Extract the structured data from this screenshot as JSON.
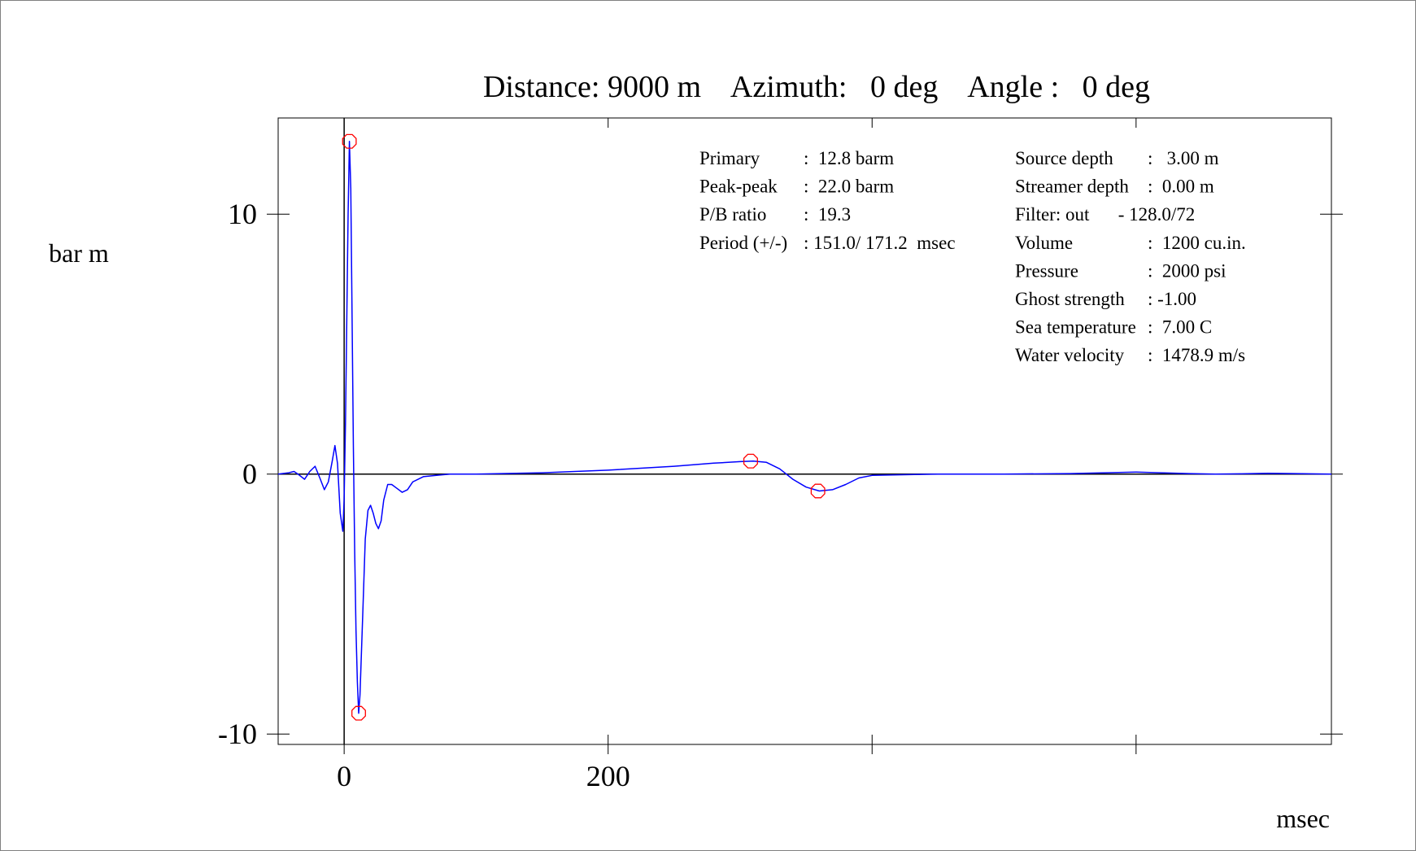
{
  "title": "Distance: 9000 m    Azimuth:   0 deg    Angle :   0 deg",
  "y_unit": "bar m",
  "x_unit": "msec",
  "info_left": [
    [
      "Primary",
      ":  12.8 barm"
    ],
    [
      "Peak-peak",
      ":  22.0 barm"
    ],
    [
      "P/B ratio",
      ":  19.3"
    ],
    [
      "Period (+/-)",
      ": 151.0/ 171.2  msec"
    ]
  ],
  "info_right": [
    [
      "Source depth",
      ":   3.00 m"
    ],
    [
      "Streamer depth",
      ":  0.00 m"
    ],
    [
      "Filter: out",
      " - 128.0/72"
    ],
    [
      "Volume",
      ":  1200 cu.in."
    ],
    [
      "Pressure",
      ":  2000 psi"
    ],
    [
      "Ghost strength",
      ": -1.00"
    ],
    [
      "Sea temperature",
      ":  7.00 C"
    ],
    [
      "Water velocity",
      ":  1478.9 m/s"
    ]
  ],
  "chart_data": {
    "type": "line",
    "title": "Distance: 9000 m    Azimuth:   0 deg    Angle :   0 deg",
    "xlabel": "msec",
    "ylabel": "bar m",
    "xlim": [
      -50,
      748
    ],
    "ylim": [
      -10.4,
      13.7
    ],
    "x_ticks": [
      0,
      200
    ],
    "y_ticks": [
      -10,
      0,
      10
    ],
    "x_minor_ticks": [
      200,
      400,
      600
    ],
    "grid": false,
    "series": [
      {
        "color": "#0000ff",
        "x": [
          -50,
          -42,
          -38,
          -35,
          -30,
          -26,
          -22,
          -18,
          -15,
          -12,
          -9,
          -7,
          -5,
          -3,
          -1,
          0,
          1,
          2,
          3,
          4,
          5,
          6,
          7,
          8,
          9,
          10,
          11,
          12,
          14,
          16,
          18,
          20,
          22,
          24,
          26,
          28,
          30,
          33,
          36,
          40,
          44,
          48,
          52,
          60,
          70,
          80,
          100,
          150,
          200,
          250,
          280,
          300,
          310,
          320,
          330,
          340,
          350,
          360,
          370,
          380,
          390,
          400,
          450,
          500,
          550,
          600,
          640,
          660,
          680,
          700,
          720,
          748
        ],
        "y": [
          0.0,
          0.05,
          0.1,
          0.0,
          -0.2,
          0.1,
          0.3,
          -0.2,
          -0.6,
          -0.3,
          0.5,
          1.1,
          0.4,
          -1.5,
          -2.2,
          -1.0,
          2.0,
          6.0,
          10.0,
          12.8,
          11.0,
          6.0,
          1.0,
          -3.0,
          -6.0,
          -8.0,
          -9.2,
          -8.5,
          -5.5,
          -2.5,
          -1.4,
          -1.2,
          -1.5,
          -1.9,
          -2.1,
          -1.8,
          -1.0,
          -0.4,
          -0.4,
          -0.55,
          -0.7,
          -0.6,
          -0.3,
          -0.1,
          -0.05,
          0.0,
          0.0,
          0.05,
          0.15,
          0.3,
          0.42,
          0.48,
          0.5,
          0.45,
          0.2,
          -0.2,
          -0.5,
          -0.65,
          -0.6,
          -0.4,
          -0.15,
          -0.05,
          0.0,
          0.0,
          0.02,
          0.08,
          0.02,
          0.0,
          0.01,
          0.03,
          0.02,
          0.0
        ]
      }
    ],
    "markers": [
      {
        "x": 4,
        "y": 12.8,
        "color": "#ff0000"
      },
      {
        "x": 11,
        "y": -9.2,
        "color": "#ff0000"
      },
      {
        "x": 308,
        "y": 0.5,
        "color": "#ff0000"
      },
      {
        "x": 359,
        "y": -0.65,
        "color": "#ff0000"
      }
    ]
  }
}
